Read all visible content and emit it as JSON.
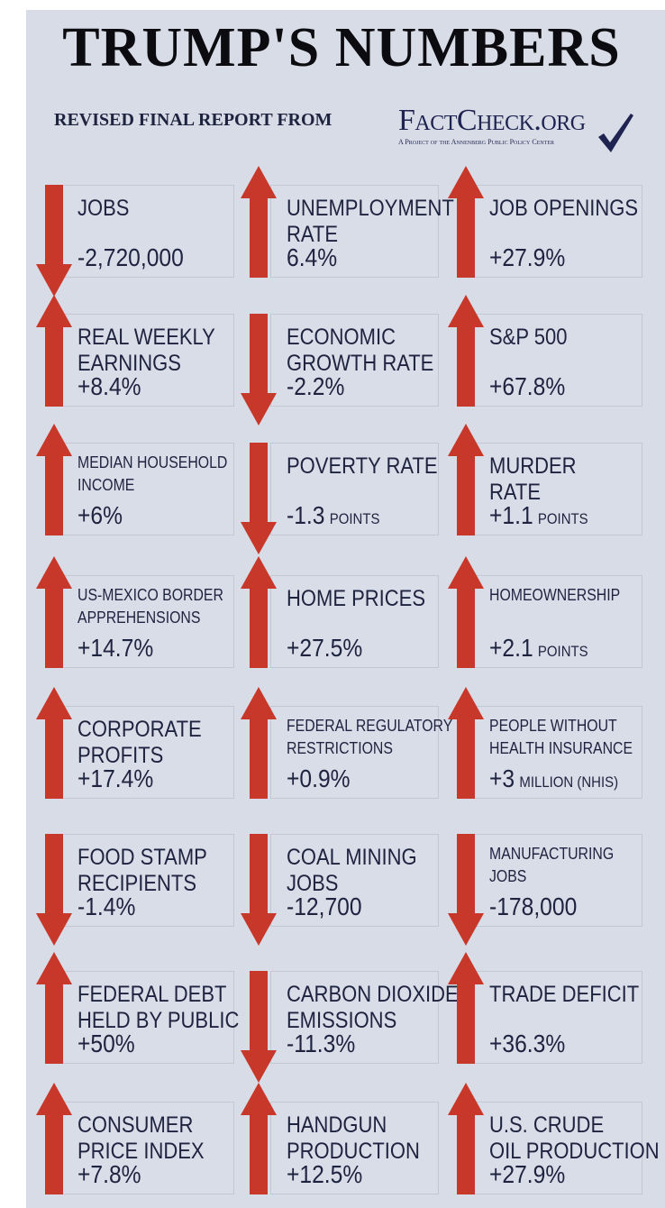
{
  "header": {
    "title": "TRUMP'S NUMBERS",
    "subtitle": "REVISED FINAL REPORT  FROM",
    "logo_name": "FactCheck.org",
    "logo_tagline": "A Project of the Annenberg Public Policy Center"
  },
  "colors": {
    "background": "#d8dce6",
    "arrow": "#c8382a",
    "text": "#1e2340"
  },
  "stats": [
    {
      "label": [
        "JOBS"
      ],
      "value": "-2,720,000",
      "unit": "",
      "direction": "down"
    },
    {
      "label": [
        "UNEMPLOYMENT",
        "RATE"
      ],
      "value": "6.4%",
      "unit": "",
      "direction": "up"
    },
    {
      "label": [
        "JOB OPENINGS"
      ],
      "value": "+27.9%",
      "unit": "",
      "direction": "up"
    },
    {
      "label": [
        "REAL WEEKLY",
        "EARNINGS"
      ],
      "value": "+8.4%",
      "unit": "",
      "direction": "up"
    },
    {
      "label": [
        "ECONOMIC",
        "GROWTH RATE"
      ],
      "value": "-2.2%",
      "unit": "",
      "direction": "down"
    },
    {
      "label": [
        "S&P 500"
      ],
      "value": "+67.8%",
      "unit": "",
      "direction": "up"
    },
    {
      "label": [
        "MEDIAN HOUSEHOLD",
        "INCOME"
      ],
      "value": "+6%",
      "unit": "",
      "direction": "up"
    },
    {
      "label": [
        "POVERTY RATE"
      ],
      "value": "-1.3",
      "unit": "POINTS",
      "direction": "down"
    },
    {
      "label": [
        "MURDER",
        "RATE"
      ],
      "value": "+1.1",
      "unit": "POINTS",
      "direction": "up"
    },
    {
      "label": [
        "US-MEXICO BORDER",
        "APPREHENSIONS"
      ],
      "value": "+14.7%",
      "unit": "",
      "direction": "up"
    },
    {
      "label": [
        "HOME PRICES"
      ],
      "value": "+27.5%",
      "unit": "",
      "direction": "up"
    },
    {
      "label": [
        "HOMEOWNERSHIP"
      ],
      "value": "+2.1",
      "unit": "POINTS",
      "direction": "up"
    },
    {
      "label": [
        "CORPORATE",
        "PROFITS"
      ],
      "value": "+17.4%",
      "unit": "",
      "direction": "up"
    },
    {
      "label": [
        "FEDERAL REGULATORY",
        "RESTRICTIONS"
      ],
      "value": "+0.9%",
      "unit": "",
      "direction": "up"
    },
    {
      "label": [
        "PEOPLE WITHOUT",
        "HEALTH INSURANCE"
      ],
      "value": "+3",
      "unit": "MILLION (NHIS)",
      "direction": "up"
    },
    {
      "label": [
        "FOOD STAMP",
        "RECIPIENTS"
      ],
      "value": "-1.4%",
      "unit": "",
      "direction": "down"
    },
    {
      "label": [
        "COAL MINING",
        "JOBS"
      ],
      "value": "-12,700",
      "unit": "",
      "direction": "down"
    },
    {
      "label": [
        "MANUFACTURING",
        "JOBS"
      ],
      "value": "-178,000",
      "unit": "",
      "direction": "down"
    },
    {
      "label": [
        "FEDERAL DEBT",
        "HELD BY PUBLIC"
      ],
      "value": "+50%",
      "unit": "",
      "direction": "up"
    },
    {
      "label": [
        "CARBON DIOXIDE",
        "EMISSIONS"
      ],
      "value": "-11.3%",
      "unit": "",
      "direction": "down"
    },
    {
      "label": [
        "TRADE DEFICIT"
      ],
      "value": "+36.3%",
      "unit": "",
      "direction": "up"
    },
    {
      "label": [
        "CONSUMER",
        "PRICE INDEX"
      ],
      "value": "+7.8%",
      "unit": "",
      "direction": "up"
    },
    {
      "label": [
        "HANDGUN",
        "PRODUCTION"
      ],
      "value": "+12.5%",
      "unit": "",
      "direction": "up"
    },
    {
      "label": [
        "U.S. CRUDE",
        "OIL PRODUCTION"
      ],
      "value": "+27.9%",
      "unit": "",
      "direction": "up"
    }
  ]
}
